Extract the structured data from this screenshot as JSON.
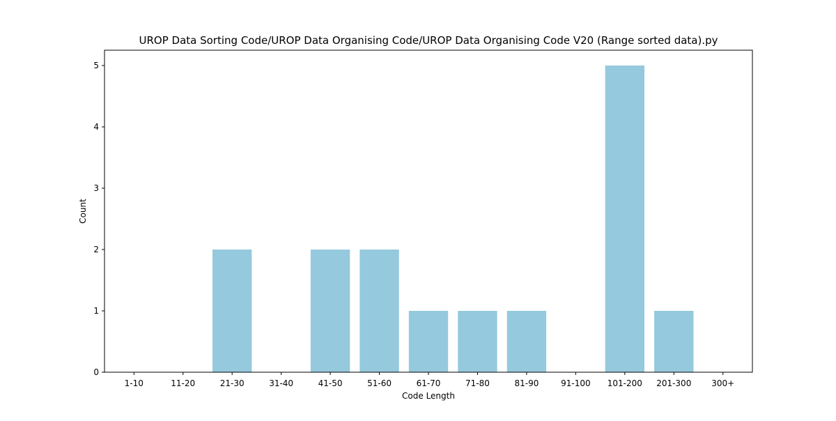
{
  "chart_data": {
    "type": "bar",
    "title": "UROP Data Sorting Code/UROP Data Organising Code/UROP Data Organising Code V20 (Range sorted data).py",
    "xlabel": "Code Length",
    "ylabel": "Count",
    "categories": [
      "1-10",
      "11-20",
      "21-30",
      "31-40",
      "41-50",
      "51-60",
      "61-70",
      "71-80",
      "81-90",
      "91-100",
      "101-200",
      "201-300",
      "300+"
    ],
    "values": [
      0,
      0,
      2,
      0,
      2,
      2,
      1,
      1,
      1,
      0,
      5,
      1,
      0
    ],
    "ylim": [
      0,
      5.25
    ],
    "yticks": [
      0,
      1,
      2,
      3,
      4,
      5
    ],
    "bar_color": "#95c9dd",
    "grid": false,
    "legend": "none"
  }
}
